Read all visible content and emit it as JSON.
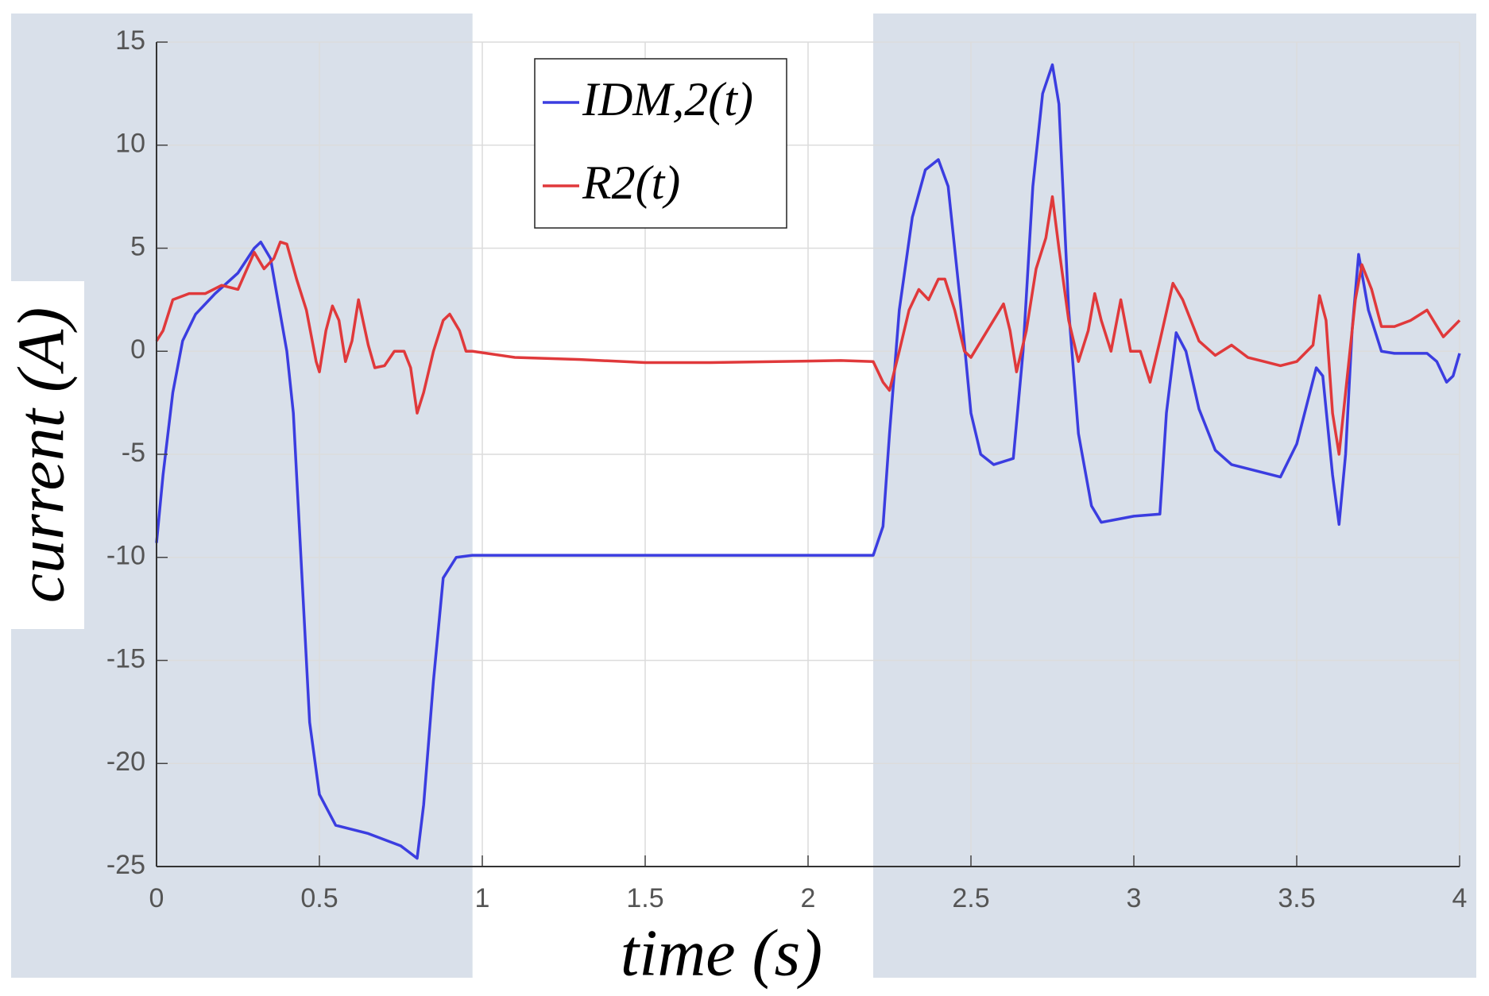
{
  "chart_data": {
    "type": "line",
    "xlabel": "time (s)",
    "ylabel": "current (A)",
    "xlim": [
      0,
      4
    ],
    "ylim": [
      -25,
      15
    ],
    "xticks": [
      0,
      0.5,
      1,
      1.5,
      2,
      2.5,
      3,
      3.5,
      4
    ],
    "yticks": [
      -25,
      -20,
      -15,
      -10,
      -5,
      0,
      5,
      10,
      15
    ],
    "grid": true,
    "legend": "upper center",
    "shaded_x": [
      [
        0,
        0.97
      ],
      [
        2.2,
        4
      ]
    ],
    "shade_color": "#d9e0ea",
    "series": [
      {
        "name": "IDM,2(t)",
        "color": "#3b3de0",
        "x": [
          0,
          0.02,
          0.05,
          0.08,
          0.12,
          0.18,
          0.25,
          0.3,
          0.32,
          0.35,
          0.4,
          0.42,
          0.45,
          0.47,
          0.5,
          0.55,
          0.65,
          0.75,
          0.8,
          0.82,
          0.85,
          0.88,
          0.92,
          0.97,
          1.5,
          2.2,
          2.23,
          2.25,
          2.28,
          2.32,
          2.36,
          2.4,
          2.43,
          2.47,
          2.5,
          2.53,
          2.57,
          2.63,
          2.66,
          2.69,
          2.72,
          2.75,
          2.77,
          2.8,
          2.83,
          2.87,
          2.9,
          3.0,
          3.08,
          3.1,
          3.13,
          3.16,
          3.2,
          3.25,
          3.3,
          3.45,
          3.5,
          3.56,
          3.58,
          3.61,
          3.63,
          3.65,
          3.67,
          3.69,
          3.72,
          3.76,
          3.8,
          3.9,
          3.93,
          3.96,
          3.98,
          4.0
        ],
        "values": [
          -9.3,
          -6,
          -2,
          0.5,
          1.8,
          2.8,
          3.8,
          5,
          5.3,
          4.5,
          0,
          -3,
          -12,
          -18,
          -21.5,
          -23,
          -23.4,
          -24,
          -24.6,
          -22,
          -16,
          -11,
          -10,
          -9.9,
          -9.9,
          -9.9,
          -8.5,
          -4,
          2,
          6.5,
          8.8,
          9.3,
          8,
          2,
          -3,
          -5,
          -5.5,
          -5.2,
          0,
          8,
          12.5,
          13.9,
          12,
          2,
          -4,
          -7.5,
          -8.3,
          -8,
          -7.9,
          -3,
          0.9,
          0,
          -2.8,
          -4.8,
          -5.5,
          -6.1,
          -4.5,
          -0.8,
          -1.2,
          -6,
          -8.4,
          -5,
          1,
          4.7,
          2,
          0,
          -0.1,
          -0.1,
          -0.5,
          -1.5,
          -1.2,
          -0.1
        ]
      },
      {
        "name": "R2(t)",
        "color": "#e0393b",
        "x": [
          0,
          0.02,
          0.05,
          0.1,
          0.15,
          0.2,
          0.25,
          0.3,
          0.33,
          0.36,
          0.38,
          0.4,
          0.43,
          0.46,
          0.49,
          0.5,
          0.52,
          0.54,
          0.56,
          0.58,
          0.6,
          0.61,
          0.62,
          0.65,
          0.67,
          0.7,
          0.73,
          0.76,
          0.78,
          0.8,
          0.82,
          0.85,
          0.88,
          0.9,
          0.93,
          0.95,
          0.97,
          1.1,
          1.3,
          1.5,
          1.7,
          1.9,
          2.1,
          2.2,
          2.23,
          2.25,
          2.28,
          2.31,
          2.34,
          2.37,
          2.4,
          2.42,
          2.45,
          2.48,
          2.5,
          2.55,
          2.6,
          2.62,
          2.64,
          2.67,
          2.7,
          2.73,
          2.75,
          2.77,
          2.8,
          2.83,
          2.86,
          2.88,
          2.9,
          2.93,
          2.96,
          2.99,
          3.02,
          3.05,
          3.08,
          3.12,
          3.15,
          3.2,
          3.25,
          3.3,
          3.35,
          3.4,
          3.45,
          3.5,
          3.55,
          3.57,
          3.59,
          3.61,
          3.63,
          3.65,
          3.68,
          3.7,
          3.73,
          3.76,
          3.8,
          3.85,
          3.9,
          3.95,
          4.0
        ],
        "values": [
          0.5,
          1,
          2.5,
          2.8,
          2.8,
          3.2,
          3,
          4.8,
          4,
          4.5,
          5.3,
          5.2,
          3.5,
          2,
          -0.5,
          -1,
          1,
          2.2,
          1.5,
          -0.5,
          0.5,
          1.5,
          2.5,
          0.3,
          -0.8,
          -0.7,
          0,
          0,
          -0.8,
          -3,
          -2,
          0,
          1.5,
          1.8,
          1,
          0,
          0,
          -0.3,
          -0.4,
          -0.55,
          -0.55,
          -0.5,
          -0.45,
          -0.5,
          -1.5,
          -1.9,
          0,
          2,
          3,
          2.5,
          3.5,
          3.5,
          2,
          0,
          -0.3,
          1,
          2.3,
          1,
          -1,
          1,
          4,
          5.5,
          7.5,
          5,
          1.5,
          -0.5,
          1,
          2.8,
          1.5,
          0,
          2.5,
          0,
          0,
          -1.5,
          0.5,
          3.3,
          2.5,
          0.5,
          -0.2,
          0.3,
          -0.3,
          -0.5,
          -0.7,
          -0.5,
          0.3,
          2.7,
          1.5,
          -3,
          -5,
          -2,
          2.5,
          4.2,
          3,
          1.2,
          1.2,
          1.5,
          2,
          0.7,
          1.5
        ]
      }
    ]
  }
}
